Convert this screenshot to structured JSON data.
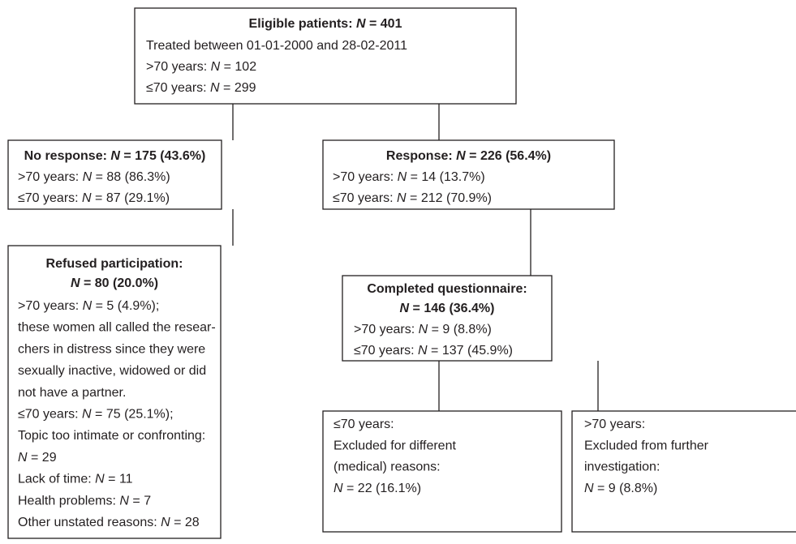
{
  "boxes": [
    {
      "title": [
        [
          {
            "text": "Eligible patients: "
          },
          {
            "text": "N",
            "italic": true
          },
          {
            "text": " = 401"
          }
        ]
      ],
      "lines": [
        [
          {
            "text": "Treated between 01-01-2000 and 28-02-2011"
          }
        ],
        [
          {
            "text": ">70 years: "
          },
          {
            "text": "N",
            "italic": true
          },
          {
            "text": " = 102"
          }
        ],
        [
          {
            "text": "≤70 years: "
          },
          {
            "text": "N",
            "italic": true
          },
          {
            "text": " = 299"
          }
        ]
      ]
    },
    {
      "title": [
        [
          {
            "text": "No response: "
          },
          {
            "text": "N",
            "italic": true
          },
          {
            "text": " = 175 (43.6%)"
          }
        ]
      ],
      "lines": [
        [
          {
            "text": ">70 years: "
          },
          {
            "text": "N",
            "italic": true
          },
          {
            "text": " = 88 (86.3%)"
          }
        ],
        [
          {
            "text": "≤70 years: "
          },
          {
            "text": "N",
            "italic": true
          },
          {
            "text": " = 87 (29.1%)"
          }
        ]
      ]
    },
    {
      "title": [
        [
          {
            "text": "Response: "
          },
          {
            "text": "N",
            "italic": true
          },
          {
            "text": " = 226 (56.4%)"
          }
        ]
      ],
      "lines": [
        [
          {
            "text": ">70 years: "
          },
          {
            "text": "N",
            "italic": true
          },
          {
            "text": " = 14 (13.7%)"
          }
        ],
        [
          {
            "text": "≤70 years: "
          },
          {
            "text": "N",
            "italic": true
          },
          {
            "text": " = 212 (70.9%)"
          }
        ]
      ]
    },
    {
      "title": [
        [
          {
            "text": "Refused participation:"
          }
        ],
        [
          {
            "text": "N",
            "italic": true
          },
          {
            "text": " = 80 (20.0%)"
          }
        ]
      ],
      "lines": [
        [
          {
            "text": ">70 years: "
          },
          {
            "text": "N",
            "italic": true
          },
          {
            "text": " = 5 (4.9%);"
          }
        ],
        [
          {
            "text": "these women all called the resear-"
          }
        ],
        [
          {
            "text": "chers in distress since they were"
          }
        ],
        [
          {
            "text": "sexually inactive, widowed or did"
          }
        ],
        [
          {
            "text": "not have a partner."
          }
        ],
        [
          {
            "text": "≤70 years: "
          },
          {
            "text": "N",
            "italic": true
          },
          {
            "text": " = 75 (25.1%);"
          }
        ],
        [
          {
            "text": "Topic too intimate or confronting:"
          }
        ],
        [
          {
            "text": "N",
            "italic": true
          },
          {
            "text": " = 29"
          }
        ],
        [
          {
            "text": "Lack of time: "
          },
          {
            "text": "N",
            "italic": true
          },
          {
            "text": " = 11"
          }
        ],
        [
          {
            "text": "Health problems: "
          },
          {
            "text": "N",
            "italic": true
          },
          {
            "text": " = 7"
          }
        ],
        [
          {
            "text": "Other unstated reasons: "
          },
          {
            "text": "N",
            "italic": true
          },
          {
            "text": " = 28"
          }
        ]
      ]
    },
    {
      "title": [
        [
          {
            "text": "Completed questionnaire:"
          }
        ],
        [
          {
            "text": "N",
            "italic": true
          },
          {
            "text": " = 146 (36.4%)"
          }
        ]
      ],
      "lines": [
        [
          {
            "text": ">70 years: "
          },
          {
            "text": "N",
            "italic": true
          },
          {
            "text": " = 9 (8.8%)"
          }
        ],
        [
          {
            "text": "≤70 years: "
          },
          {
            "text": "N",
            "italic": true
          },
          {
            "text": " = 137 (45.9%)"
          }
        ]
      ]
    },
    {
      "title": [],
      "lines": [
        [
          {
            "text": "≤70 years:"
          }
        ],
        [
          {
            "text": "Excluded for different"
          }
        ],
        [
          {
            "text": "(medical) reasons:"
          }
        ],
        [
          {
            "text": "N",
            "italic": true
          },
          {
            "text": " = 22 (16.1%)"
          }
        ]
      ]
    },
    {
      "title": [],
      "lines": [
        [
          {
            "text": ">70 years:"
          }
        ],
        [
          {
            "text": "Excluded from further"
          }
        ],
        [
          {
            "text": "investigation:"
          }
        ],
        [
          {
            "text": "N",
            "italic": true
          },
          {
            "text": " = 9 (8.8%)"
          }
        ]
      ]
    }
  ]
}
